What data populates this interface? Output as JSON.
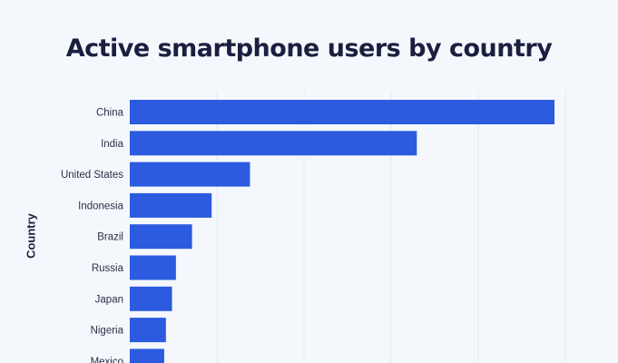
{
  "chart_data": {
    "type": "bar",
    "orientation": "horizontal",
    "title": "Active smartphone users by country",
    "xlabel": "",
    "ylabel": "Country",
    "categories": [
      "China",
      "India",
      "United States",
      "Indonesia",
      "Brazil",
      "Russia",
      "Japan",
      "Nigeria",
      "Mexico"
    ],
    "values": [
      975,
      659,
      276,
      188,
      143,
      106,
      97,
      83,
      79
    ],
    "xlim": [
      0,
      1000
    ],
    "grid_step": 200,
    "grid": true,
    "bar_color": "#2c5be0"
  }
}
